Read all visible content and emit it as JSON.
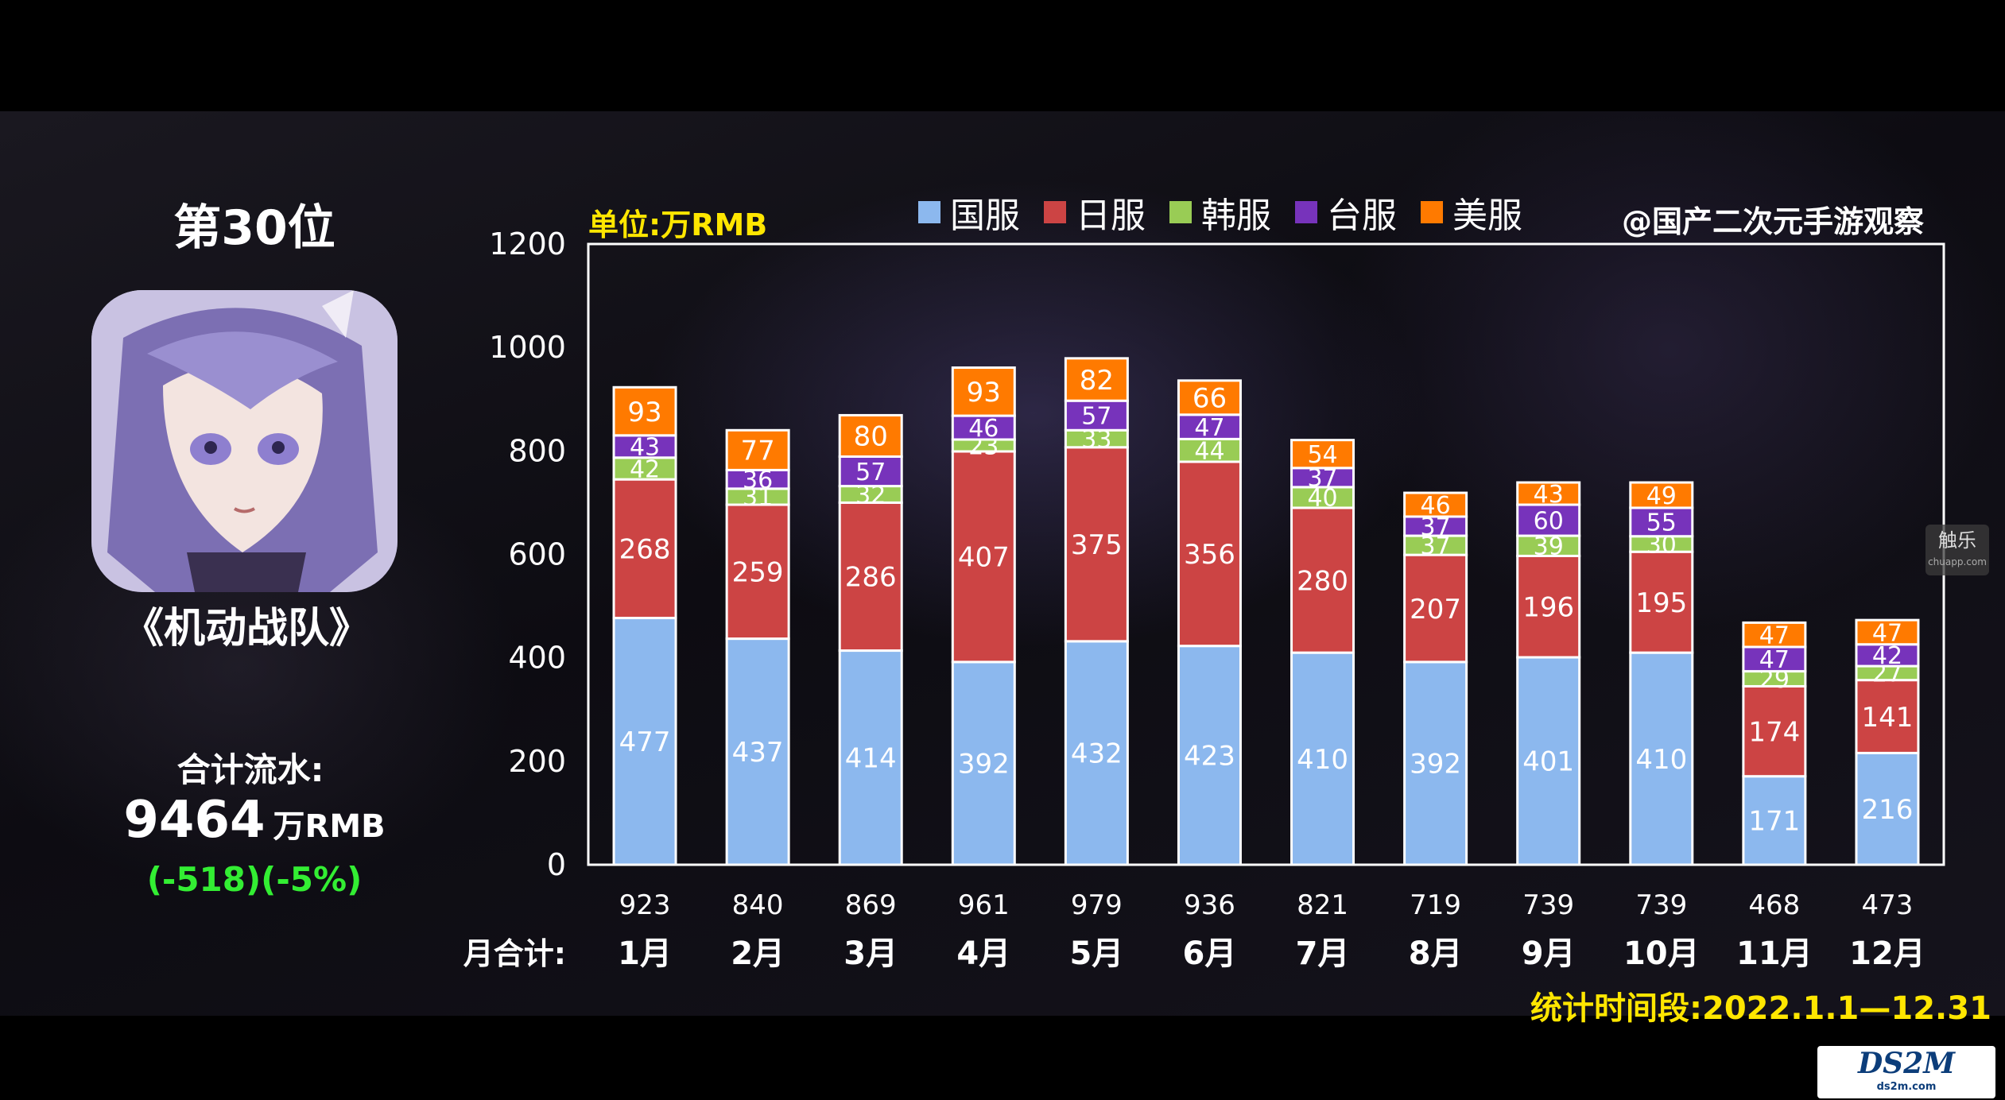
{
  "rank": "第30位",
  "game_name": "《机动战队》",
  "total_label": "合计流水:",
  "total_value": "9464",
  "total_unit": "万RMB",
  "total_change": "(-518)(-5%)",
  "unit_label": "单位:万RMB",
  "source_label": "@国产二次元手游观察",
  "period_label": "统计时间段:2022.1.1—12.31",
  "side_badge": {
    "text": "触乐",
    "small": "chuapp.com"
  },
  "watermark": {
    "text": "DS2M",
    "small": "ds2m.com"
  },
  "legend": [
    {
      "label": "国服",
      "color": "#8cb8ee"
    },
    {
      "label": "日服",
      "color": "#cc4444"
    },
    {
      "label": "韩服",
      "color": "#99cc55"
    },
    {
      "label": "台服",
      "color": "#7733bb"
    },
    {
      "label": "美服",
      "color": "#ff7a00"
    }
  ],
  "chart_data": {
    "type": "bar",
    "stacked": true,
    "categories": [
      "1月",
      "2月",
      "3月",
      "4月",
      "5月",
      "6月",
      "7月",
      "8月",
      "9月",
      "10月",
      "11月",
      "12月"
    ],
    "series": [
      {
        "name": "国服",
        "color": "#8cb8ee",
        "values": [
          477,
          437,
          414,
          392,
          432,
          423,
          410,
          392,
          401,
          410,
          171,
          216
        ]
      },
      {
        "name": "日服",
        "color": "#cc4444",
        "values": [
          268,
          259,
          286,
          407,
          375,
          356,
          280,
          207,
          196,
          195,
          174,
          141
        ]
      },
      {
        "name": "韩服",
        "color": "#99cc55",
        "values": [
          42,
          31,
          32,
          23,
          33,
          44,
          40,
          37,
          39,
          30,
          29,
          27
        ]
      },
      {
        "name": "台服",
        "color": "#7733bb",
        "values": [
          43,
          36,
          57,
          46,
          57,
          47,
          37,
          37,
          60,
          55,
          47,
          42
        ]
      },
      {
        "name": "美服",
        "color": "#ff7a00",
        "values": [
          93,
          77,
          80,
          93,
          82,
          66,
          54,
          46,
          43,
          49,
          47,
          47
        ]
      }
    ],
    "totals_label": "月合计:",
    "totals": [
      923,
      840,
      869,
      961,
      979,
      936,
      821,
      719,
      739,
      739,
      468,
      473
    ],
    "y_ticks": [
      0,
      200,
      400,
      600,
      800,
      1000,
      1200
    ],
    "ylim": [
      0,
      1200
    ],
    "grid": false,
    "legend_position": "top"
  }
}
